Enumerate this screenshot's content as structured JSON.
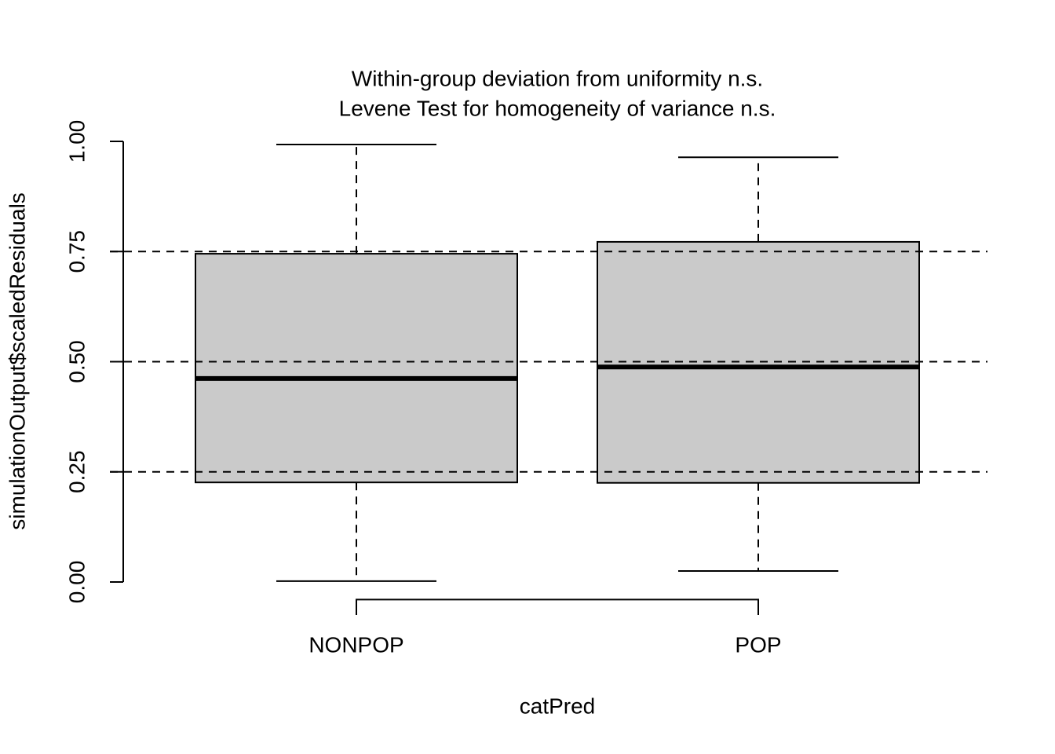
{
  "chart_data": {
    "type": "boxplot",
    "title": "Within-group deviation from uniformity n.s.",
    "subtitle": "Levene Test for homogeneity of variance n.s.",
    "x_label": "catPred",
    "y_label": "simulationOutput$scaledResiduals",
    "categories": [
      "NONPOP",
      "POP"
    ],
    "boxes": [
      {
        "whislo": 0.002,
        "q1": 0.226,
        "med": 0.462,
        "q3": 0.745,
        "whishi": 0.993
      },
      {
        "whislo": 0.025,
        "q1": 0.225,
        "med": 0.488,
        "q3": 0.772,
        "whishi": 0.964
      }
    ],
    "color": "#cacaca",
    "hlines": [
      0.25,
      0.5,
      0.75
    ],
    "ylim": [
      -0.04,
      1.04
    ],
    "yticks": [
      {
        "value": 0,
        "label": "0.00"
      },
      {
        "value": 0.25,
        "label": "0.25"
      },
      {
        "value": 0.5,
        "label": "0.50"
      },
      {
        "value": 0.75,
        "label": "0.75"
      },
      {
        "value": 1,
        "label": "1.00"
      }
    ]
  }
}
